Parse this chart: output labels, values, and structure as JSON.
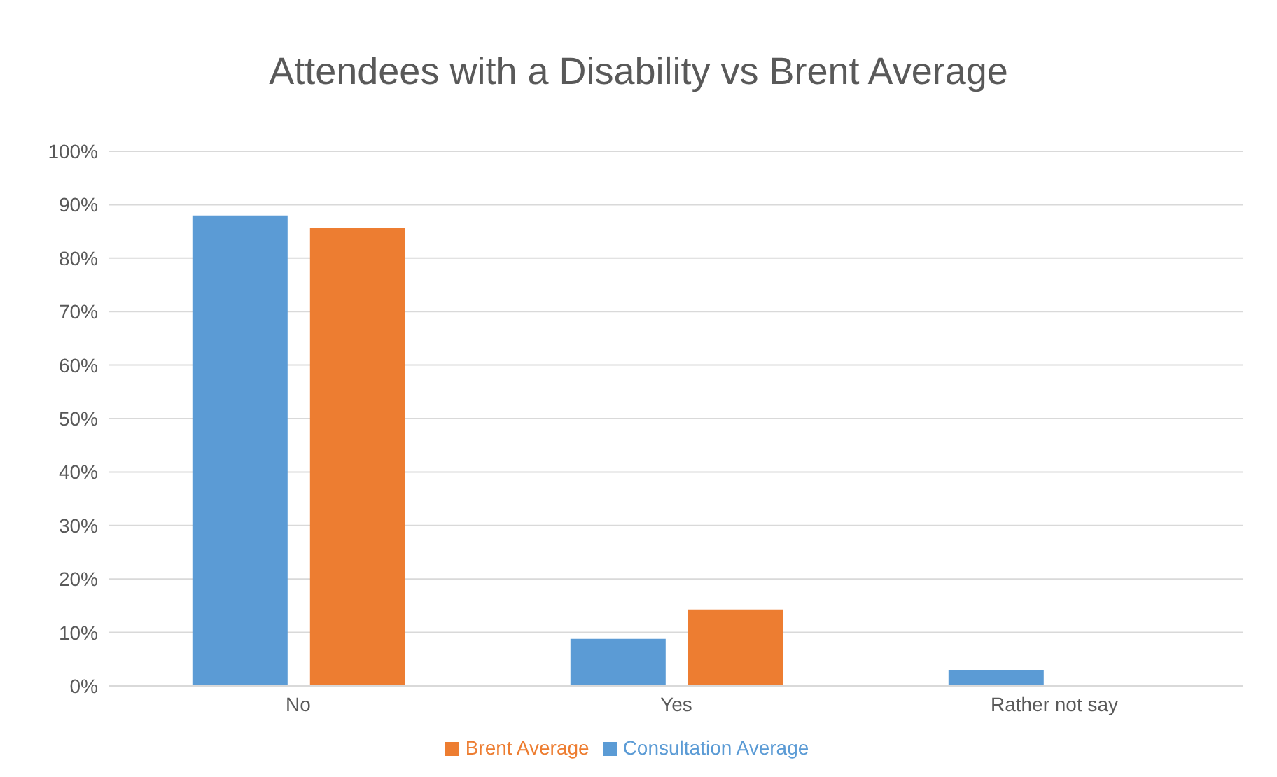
{
  "chart_data": {
    "type": "bar",
    "title": "Attendees with a Disability vs Brent Average",
    "categories": [
      "No",
      "Yes",
      "Rather not say"
    ],
    "series": [
      {
        "name": "Consultation Average",
        "color": "#5b9bd5",
        "values": [
          88,
          8.8,
          3.0
        ]
      },
      {
        "name": "Brent Average",
        "color": "#ed7d31",
        "values": [
          85.6,
          14.3,
          0
        ]
      }
    ],
    "ylim": [
      0,
      100
    ],
    "yticks": [
      {
        "value": 0,
        "label": "0%"
      },
      {
        "value": 10,
        "label": "10%"
      },
      {
        "value": 20,
        "label": "20%"
      },
      {
        "value": 30,
        "label": "30%"
      },
      {
        "value": 40,
        "label": "40%"
      },
      {
        "value": 50,
        "label": "50%"
      },
      {
        "value": 60,
        "label": "60%"
      },
      {
        "value": 70,
        "label": "70%"
      },
      {
        "value": 80,
        "label": "80%"
      },
      {
        "value": 90,
        "label": "90%"
      },
      {
        "value": 100,
        "label": "100%"
      }
    ],
    "grid": "y",
    "legend": "bottom"
  }
}
